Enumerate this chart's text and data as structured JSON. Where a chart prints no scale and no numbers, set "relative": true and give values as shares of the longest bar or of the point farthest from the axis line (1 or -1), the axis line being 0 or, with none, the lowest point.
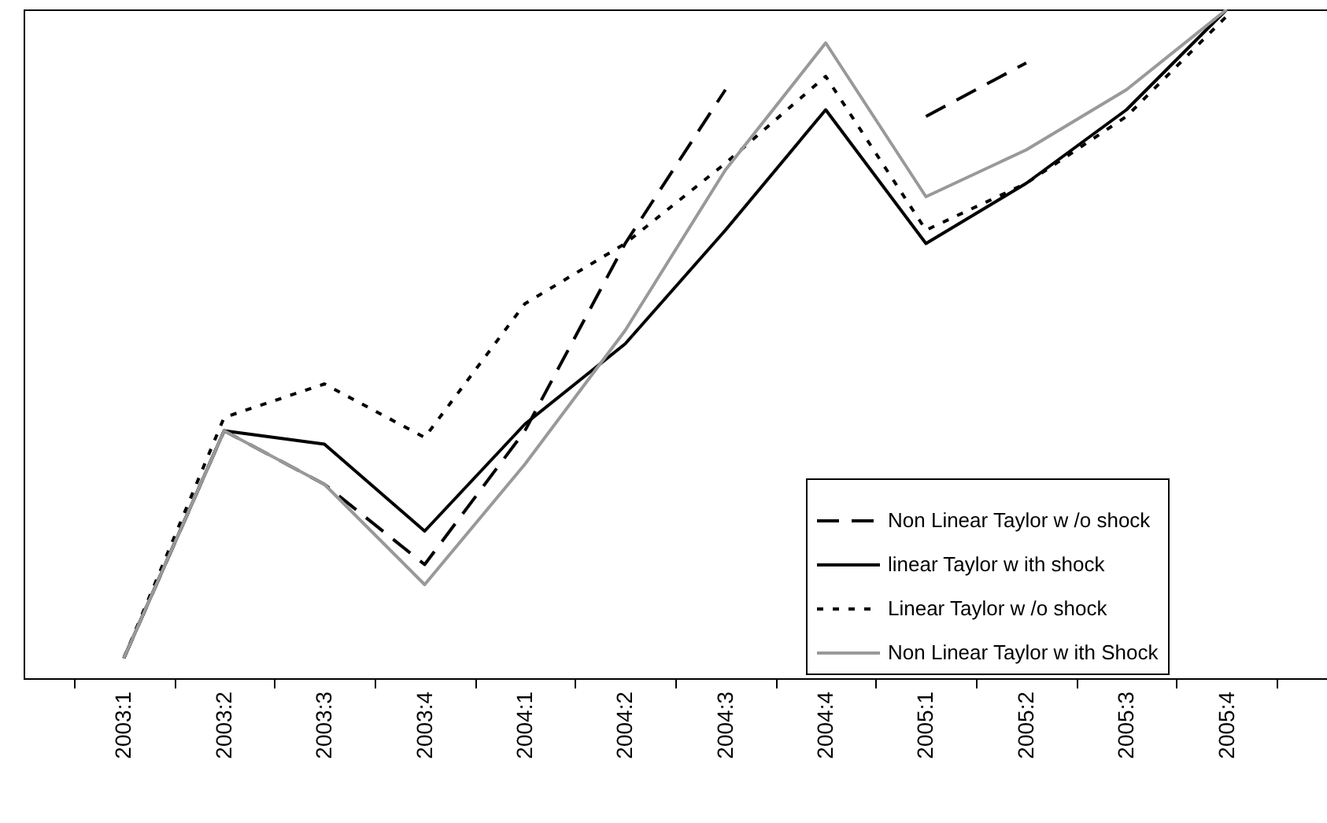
{
  "chart_data": {
    "type": "line",
    "relative": true,
    "categories": [
      "2003:1",
      "2003:2",
      "2003:3",
      "2003:4",
      "2004:1",
      "2004:2",
      "2004:3",
      "2004:4",
      "2005:1",
      "2005:2",
      "2005:3",
      "2005:4"
    ],
    "series": [
      {
        "name": "Non Linear Taylor w /o shock",
        "color": "#000000",
        "line_style": "dashed",
        "values": [
          0.03,
          0.37,
          0.29,
          0.17,
          0.37,
          0.65,
          0.88,
          null,
          0.84,
          0.92,
          null,
          null
        ]
      },
      {
        "name": "linear Taylor w ith shock",
        "color": "#000000",
        "line_style": "solid",
        "values": [
          0.03,
          0.37,
          0.35,
          0.22,
          0.38,
          0.5,
          0.67,
          0.85,
          0.65,
          0.74,
          0.85,
          1
        ]
      },
      {
        "name": "Linear Taylor w /o shock",
        "color": "#000000",
        "line_style": "dotted",
        "values": [
          0.03,
          0.39,
          0.44,
          0.36,
          0.56,
          0.65,
          0.77,
          0.9,
          0.67,
          0.74,
          0.84,
          0.99
        ]
      },
      {
        "name": "Non Linear Taylor w ith Shock",
        "color": "#999999",
        "line_style": "solid",
        "values": [
          0.03,
          0.37,
          0.29,
          0.14,
          0.32,
          0.52,
          0.76,
          0.95,
          0.72,
          0.79,
          0.88,
          1
        ]
      }
    ],
    "legend": "bottom right",
    "grid": false
  }
}
